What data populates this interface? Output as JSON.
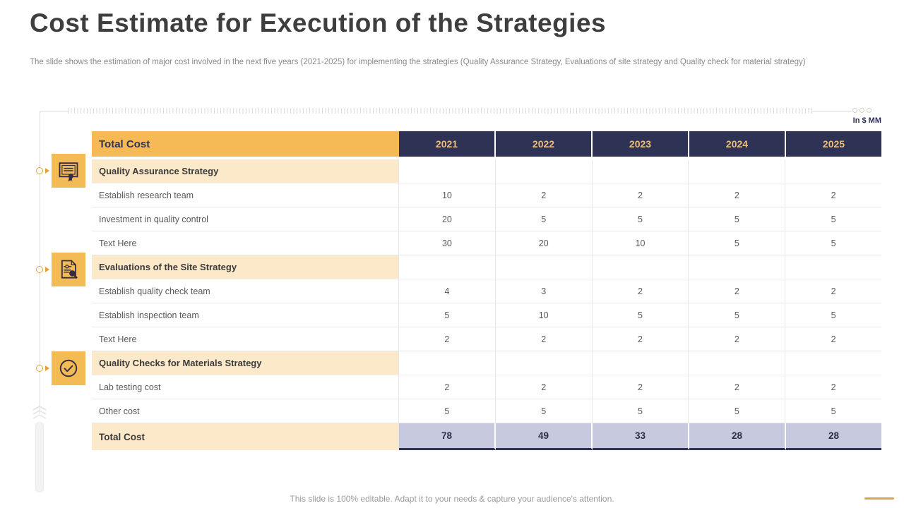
{
  "slide": {
    "title": "Cost Estimate for Execution of the Strategies",
    "subtitle": "The slide shows the estimation of major cost involved in  the next five years (2021-2025) for implementing the strategies (Quality Assurance Strategy, Evaluations of site strategy and Quality check for material strategy)",
    "units_label": "In $ MM",
    "footer": "This slide is 100% editable. Adapt it to your needs & capture your audience's attention."
  },
  "icons": {
    "section1": "certificate-icon",
    "section2": "document-search-icon",
    "section3": "check-circle-icon"
  },
  "colors": {
    "accent_orange": "#f5ba55",
    "icon_orange": "#f3bb56",
    "cream": "#fce9c9",
    "navy": "#2e3254",
    "gold_text": "#eabe7e",
    "lavender": "#c7cadf",
    "tan_accent": "#d9a34b",
    "marker_orange": "#e2a23b"
  },
  "table": {
    "header": {
      "label": "Total Cost",
      "years": [
        "2021",
        "2022",
        "2023",
        "2024",
        "2025"
      ]
    },
    "sections": [
      {
        "title": "Quality Assurance Strategy",
        "rows": [
          {
            "label": "Establish research  team",
            "values": [
              "10",
              "2",
              "2",
              "2",
              "2"
            ]
          },
          {
            "label": "Investment  in quality control",
            "values": [
              "20",
              "5",
              "5",
              "5",
              "5"
            ]
          },
          {
            "label": "Text Here",
            "values": [
              "30",
              "20",
              "10",
              "5",
              "5"
            ]
          }
        ]
      },
      {
        "title": "Evaluations of the Site Strategy",
        "rows": [
          {
            "label": "Establish quality check team",
            "values": [
              "4",
              "3",
              "2",
              "2",
              "2"
            ]
          },
          {
            "label": "Establish inspection team",
            "values": [
              "5",
              "10",
              "5",
              "5",
              "5"
            ]
          },
          {
            "label": "Text Here",
            "values": [
              "2",
              "2",
              "2",
              "2",
              "2"
            ]
          }
        ]
      },
      {
        "title": "Quality Checks for Materials Strategy",
        "rows": [
          {
            "label": "Lab testing cost",
            "values": [
              "2",
              "2",
              "2",
              "2",
              "2"
            ]
          },
          {
            "label": "Other cost",
            "values": [
              "5",
              "5",
              "5",
              "5",
              "5"
            ]
          }
        ]
      }
    ],
    "total": {
      "label": "Total Cost",
      "values": [
        "78",
        "49",
        "33",
        "28",
        "28"
      ]
    }
  },
  "chart_data": {
    "type": "table",
    "title": "Cost Estimate for Execution of the Strategies",
    "units": "In $ MM",
    "columns": [
      "Total Cost",
      "2021",
      "2022",
      "2023",
      "2024",
      "2025"
    ],
    "rows": [
      [
        "Quality Assurance Strategy",
        "",
        "",
        "",
        "",
        ""
      ],
      [
        "Establish research team",
        10,
        2,
        2,
        2,
        2
      ],
      [
        "Investment in quality control",
        20,
        5,
        5,
        5,
        5
      ],
      [
        "Text Here",
        30,
        20,
        10,
        5,
        5
      ],
      [
        "Evaluations of the Site Strategy",
        "",
        "",
        "",
        "",
        ""
      ],
      [
        "Establish quality check team",
        4,
        3,
        2,
        2,
        2
      ],
      [
        "Establish inspection team",
        5,
        10,
        5,
        5,
        5
      ],
      [
        "Text Here",
        2,
        2,
        2,
        2,
        2
      ],
      [
        "Quality Checks for Materials Strategy",
        "",
        "",
        "",
        "",
        ""
      ],
      [
        "Lab testing cost",
        2,
        2,
        2,
        2,
        2
      ],
      [
        "Other cost",
        5,
        5,
        5,
        5,
        5
      ],
      [
        "Total Cost",
        78,
        49,
        33,
        28,
        28
      ]
    ]
  }
}
